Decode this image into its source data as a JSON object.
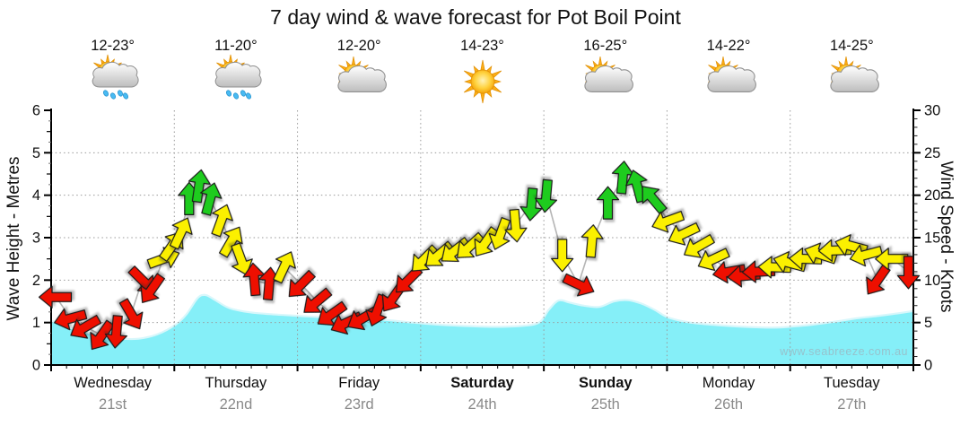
{
  "title": "7 day wind & wave forecast for Pot Boil Point",
  "watermark": "www.seabreeze.com.au",
  "left_axis": {
    "title": "Wave Height - Metres",
    "ticks": [
      0,
      1,
      2,
      3,
      4,
      5,
      6
    ]
  },
  "right_axis": {
    "title": "Wind Speed - Knots",
    "ticks": [
      0,
      5,
      10,
      15,
      20,
      25,
      30
    ]
  },
  "days": [
    {
      "name": "Wednesday",
      "date": "21st",
      "temp": "12-23°",
      "icon": "sun-cloud-rain",
      "bold": false
    },
    {
      "name": "Thursday",
      "date": "22nd",
      "temp": "11-20°",
      "icon": "sun-cloud-rain",
      "bold": false
    },
    {
      "name": "Friday",
      "date": "23rd",
      "temp": "12-20°",
      "icon": "sun-cloud",
      "bold": false
    },
    {
      "name": "Saturday",
      "date": "24th",
      "temp": "14-23°",
      "icon": "sun",
      "bold": true
    },
    {
      "name": "Sunday",
      "date": "25th",
      "temp": "16-25°",
      "icon": "sun-cloud",
      "bold": true
    },
    {
      "name": "Monday",
      "date": "26th",
      "temp": "14-22°",
      "icon": "sun-cloud",
      "bold": false
    },
    {
      "name": "Tuesday",
      "date": "27th",
      "temp": "14-25°",
      "icon": "sun-cloud",
      "bold": false
    }
  ],
  "colors": {
    "wave_fill": "#85EFF8",
    "wave_line": "#D8F7FB",
    "arrow_red": "#EE0F00",
    "arrow_yellow": "#FBF000",
    "arrow_green": "#1ECC1E",
    "grid": "#999999",
    "axis": "#000000",
    "date_text": "#8A8A8A",
    "wind_line": "#B5B5B5"
  },
  "chart_data": {
    "type": "area+wind-arrows",
    "title": "7 day wind & wave forecast for Pot Boil Point",
    "xlabel_days": [
      "Wednesday 21st",
      "Thursday 22nd",
      "Friday 23rd",
      "Saturday 24th",
      "Sunday 25th",
      "Monday 26th",
      "Tuesday 27th"
    ],
    "wave_range_m": [
      0,
      6
    ],
    "wind_range_knots": [
      0,
      30
    ],
    "grid": "dotted, horizontal every 5 knots / 1 m, vertical at day boundaries",
    "wave_series": {
      "name": "Wave Height (metres)",
      "x_unit": "days from start (0-7)",
      "points": [
        [
          0,
          1.05
        ],
        [
          0.13,
          0.9
        ],
        [
          0.28,
          0.78
        ],
        [
          0.42,
          0.68
        ],
        [
          0.57,
          0.62
        ],
        [
          0.71,
          0.62
        ],
        [
          0.86,
          0.72
        ],
        [
          1.01,
          0.95
        ],
        [
          1.1,
          1.2
        ],
        [
          1.19,
          1.58
        ],
        [
          1.25,
          1.65
        ],
        [
          1.32,
          1.55
        ],
        [
          1.44,
          1.35
        ],
        [
          1.59,
          1.25
        ],
        [
          1.77,
          1.2
        ],
        [
          2.0,
          1.16
        ],
        [
          2.24,
          1.12
        ],
        [
          2.5,
          1.1
        ],
        [
          2.72,
          1.06
        ],
        [
          2.94,
          1.0
        ],
        [
          3.15,
          0.95
        ],
        [
          3.37,
          0.92
        ],
        [
          3.59,
          0.9
        ],
        [
          3.81,
          0.92
        ],
        [
          3.96,
          1.0
        ],
        [
          4.04,
          1.3
        ],
        [
          4.12,
          1.52
        ],
        [
          4.21,
          1.47
        ],
        [
          4.32,
          1.4
        ],
        [
          4.45,
          1.37
        ],
        [
          4.57,
          1.5
        ],
        [
          4.68,
          1.53
        ],
        [
          4.79,
          1.45
        ],
        [
          4.9,
          1.3
        ],
        [
          5.01,
          1.12
        ],
        [
          5.19,
          1.0
        ],
        [
          5.41,
          0.94
        ],
        [
          5.63,
          0.9
        ],
        [
          5.85,
          0.88
        ],
        [
          5.99,
          0.9
        ],
        [
          6.18,
          0.95
        ],
        [
          6.36,
          1.02
        ],
        [
          6.54,
          1.1
        ],
        [
          6.69,
          1.15
        ],
        [
          6.83,
          1.2
        ],
        [
          7,
          1.27
        ]
      ]
    },
    "wind_series": {
      "name": "Wind Speed (knots)",
      "dir_note": "degrees clockwise from up, direction arrow points",
      "points": [
        {
          "d": 0.04,
          "kn": 8,
          "color": "red",
          "dir": 270
        },
        {
          "d": 0.16,
          "kn": 5.5,
          "color": "red",
          "dir": 255
        },
        {
          "d": 0.28,
          "kn": 4.5,
          "color": "red",
          "dir": 240
        },
        {
          "d": 0.41,
          "kn": 3.5,
          "color": "red",
          "dir": 215
        },
        {
          "d": 0.53,
          "kn": 4,
          "color": "red",
          "dir": 185
        },
        {
          "d": 0.65,
          "kn": 6,
          "color": "red",
          "dir": 150
        },
        {
          "d": 0.74,
          "kn": 10,
          "color": "red",
          "dir": 135
        },
        {
          "d": 0.82,
          "kn": 9,
          "color": "red",
          "dir": 215
        },
        {
          "d": 0.91,
          "kn": 12.5,
          "color": "yellow",
          "dir": 70
        },
        {
          "d": 0.98,
          "kn": 14,
          "color": "yellow",
          "dir": 35
        },
        {
          "d": 1.05,
          "kn": 15.5,
          "color": "yellow",
          "dir": 25
        },
        {
          "d": 1.12,
          "kn": 19.5,
          "color": "green",
          "dir": 0
        },
        {
          "d": 1.2,
          "kn": 21,
          "color": "green",
          "dir": 8
        },
        {
          "d": 1.29,
          "kn": 19.5,
          "color": "green",
          "dir": 15
        },
        {
          "d": 1.38,
          "kn": 17,
          "color": "yellow",
          "dir": 20
        },
        {
          "d": 1.46,
          "kn": 14.5,
          "color": "yellow",
          "dir": 30
        },
        {
          "d": 1.54,
          "kn": 12.5,
          "color": "yellow",
          "dir": 160
        },
        {
          "d": 1.65,
          "kn": 10,
          "color": "red",
          "dir": 355
        },
        {
          "d": 1.77,
          "kn": 9.5,
          "color": "red",
          "dir": 5
        },
        {
          "d": 1.89,
          "kn": 11.5,
          "color": "yellow",
          "dir": 25
        },
        {
          "d": 2.03,
          "kn": 9.5,
          "color": "red",
          "dir": 225
        },
        {
          "d": 2.16,
          "kn": 7.5,
          "color": "red",
          "dir": 230
        },
        {
          "d": 2.28,
          "kn": 6,
          "color": "red",
          "dir": 235
        },
        {
          "d": 2.4,
          "kn": 5,
          "color": "red",
          "dir": 245
        },
        {
          "d": 2.53,
          "kn": 5.5,
          "color": "red",
          "dir": 240
        },
        {
          "d": 2.65,
          "kn": 6.5,
          "color": "red",
          "dir": 200
        },
        {
          "d": 2.78,
          "kn": 8,
          "color": "red",
          "dir": 215
        },
        {
          "d": 2.9,
          "kn": 10,
          "color": "red",
          "dir": 225
        },
        {
          "d": 3.03,
          "kn": 12.5,
          "color": "yellow",
          "dir": 225
        },
        {
          "d": 3.15,
          "kn": 13,
          "color": "yellow",
          "dir": 230
        },
        {
          "d": 3.28,
          "kn": 13.5,
          "color": "yellow",
          "dir": 232
        },
        {
          "d": 3.4,
          "kn": 14,
          "color": "yellow",
          "dir": 228
        },
        {
          "d": 3.53,
          "kn": 14.5,
          "color": "yellow",
          "dir": 215
        },
        {
          "d": 3.65,
          "kn": 15.5,
          "color": "yellow",
          "dir": 200
        },
        {
          "d": 3.77,
          "kn": 16.5,
          "color": "yellow",
          "dir": 175
        },
        {
          "d": 3.9,
          "kn": 19,
          "color": "green",
          "dir": 185
        },
        {
          "d": 4.02,
          "kn": 20,
          "color": "green",
          "dir": 185
        },
        {
          "d": 4.15,
          "kn": 13,
          "color": "yellow",
          "dir": 180
        },
        {
          "d": 4.28,
          "kn": 9.5,
          "color": "red",
          "dir": 115
        },
        {
          "d": 4.39,
          "kn": 14.5,
          "color": "yellow",
          "dir": 5
        },
        {
          "d": 4.52,
          "kn": 19,
          "color": "green",
          "dir": 0
        },
        {
          "d": 4.64,
          "kn": 22,
          "color": "green",
          "dir": 5
        },
        {
          "d": 4.76,
          "kn": 21,
          "color": "green",
          "dir": 345
        },
        {
          "d": 4.89,
          "kn": 19.5,
          "color": "green",
          "dir": 320
        },
        {
          "d": 5.01,
          "kn": 17,
          "color": "yellow",
          "dir": 250
        },
        {
          "d": 5.14,
          "kn": 15.5,
          "color": "yellow",
          "dir": 245
        },
        {
          "d": 5.26,
          "kn": 14,
          "color": "yellow",
          "dir": 240
        },
        {
          "d": 5.38,
          "kn": 12.5,
          "color": "yellow",
          "dir": 245
        },
        {
          "d": 5.51,
          "kn": 11,
          "color": "red",
          "dir": 260
        },
        {
          "d": 5.63,
          "kn": 10.5,
          "color": "red",
          "dir": 265
        },
        {
          "d": 5.75,
          "kn": 11,
          "color": "red",
          "dir": 268
        },
        {
          "d": 5.88,
          "kn": 11.5,
          "color": "yellow",
          "dir": 272
        },
        {
          "d": 6.0,
          "kn": 12,
          "color": "yellow",
          "dir": 285
        },
        {
          "d": 6.13,
          "kn": 12.5,
          "color": "yellow",
          "dir": 272
        },
        {
          "d": 6.25,
          "kn": 13,
          "color": "yellow",
          "dir": 288
        },
        {
          "d": 6.37,
          "kn": 13.5,
          "color": "yellow",
          "dir": 268
        },
        {
          "d": 6.5,
          "kn": 14,
          "color": "yellow",
          "dir": 285
        },
        {
          "d": 6.62,
          "kn": 13,
          "color": "yellow",
          "dir": 255
        },
        {
          "d": 6.71,
          "kn": 10,
          "color": "red",
          "dir": 215
        },
        {
          "d": 6.83,
          "kn": 12.5,
          "color": "yellow",
          "dir": 270
        },
        {
          "d": 6.96,
          "kn": 11,
          "color": "red",
          "dir": 180
        }
      ]
    }
  }
}
